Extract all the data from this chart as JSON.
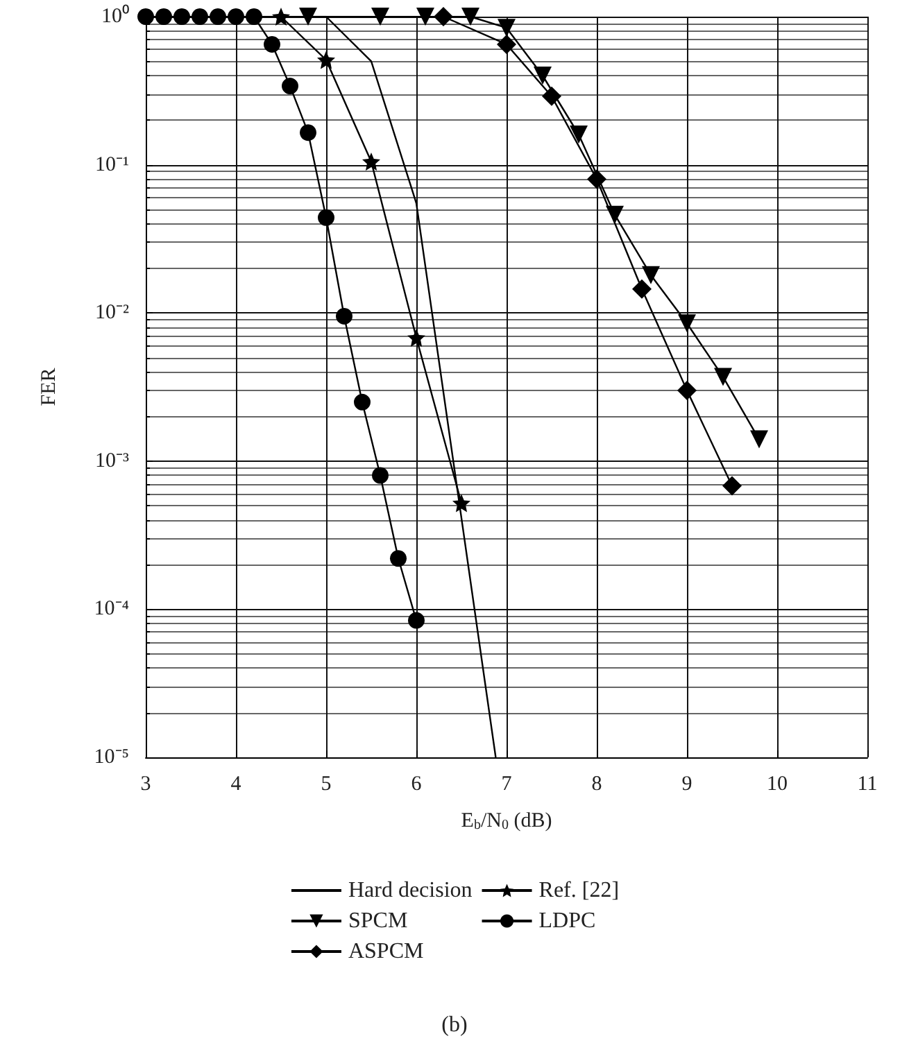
{
  "chart_data": {
    "type": "line",
    "xlabel": "E$_{b}$/N$_{0}$ (dB)",
    "ylabel": "FER",
    "log": "y",
    "grid": true,
    "legend": "bottom",
    "line_style": "solid",
    "xlim": [
      3,
      11
    ],
    "xticks": [
      3,
      4,
      5,
      6,
      7,
      8,
      9,
      10,
      11
    ],
    "ylim": [
      1e-05,
      1
    ],
    "yticks": [
      {
        "value": 1e-05,
        "label": "10⁻⁵"
      },
      {
        "value": 0.0001,
        "label": "10⁻⁴"
      },
      {
        "value": 0.001,
        "label": "10⁻³"
      },
      {
        "value": 0.01,
        "label": "10⁻²"
      },
      {
        "value": 0.1,
        "label": "10⁻¹"
      },
      {
        "value": 1,
        "label": "10⁰"
      }
    ],
    "annotations": [
      "(b)"
    ],
    "series": [
      {
        "name": "Hard decision",
        "color": "#000000",
        "marker": "none",
        "x": [
          3,
          5,
          5.5,
          6,
          6.88
        ],
        "values": [
          1,
          1,
          0.5,
          0.055,
          1e-05
        ]
      },
      {
        "name": "SPCM",
        "color": "#000000",
        "marker": "triangle",
        "x": [
          4.8,
          5.6,
          6.1,
          6.6,
          7,
          7.4,
          7.8,
          8.2,
          8.6,
          9,
          9.4,
          9.8
        ],
        "values": [
          1,
          1,
          1,
          1,
          0.84,
          0.4,
          0.16,
          0.046,
          0.018,
          0.0085,
          0.0037,
          0.0014
        ]
      },
      {
        "name": "ASPCM",
        "color": "#000000",
        "marker": "diamond",
        "x": [
          6.3,
          7,
          7.5,
          8,
          8.5,
          9,
          9.5
        ],
        "values": [
          1,
          0.65,
          0.29,
          0.08,
          0.0145,
          0.003,
          0.00068
        ]
      },
      {
        "name": "Ref. [22]",
        "color": "#000000",
        "marker": "star",
        "x": [
          4.5,
          5,
          5.5,
          6,
          6.5
        ],
        "values": [
          1,
          0.51,
          0.105,
          0.0068,
          0.00052
        ]
      },
      {
        "name": "LDPC",
        "color": "#000000",
        "marker": "circle",
        "x": [
          3,
          3.2,
          3.4,
          3.6,
          3.8,
          4,
          4.2,
          4.4,
          4.6,
          4.8,
          5,
          5.2,
          5.4,
          5.6,
          5.8,
          6
        ],
        "values": [
          1,
          1,
          1,
          1,
          1,
          1,
          1,
          0.65,
          0.34,
          0.165,
          0.044,
          0.0095,
          0.0025,
          0.0008,
          0.00022,
          8.4e-05
        ]
      }
    ]
  }
}
